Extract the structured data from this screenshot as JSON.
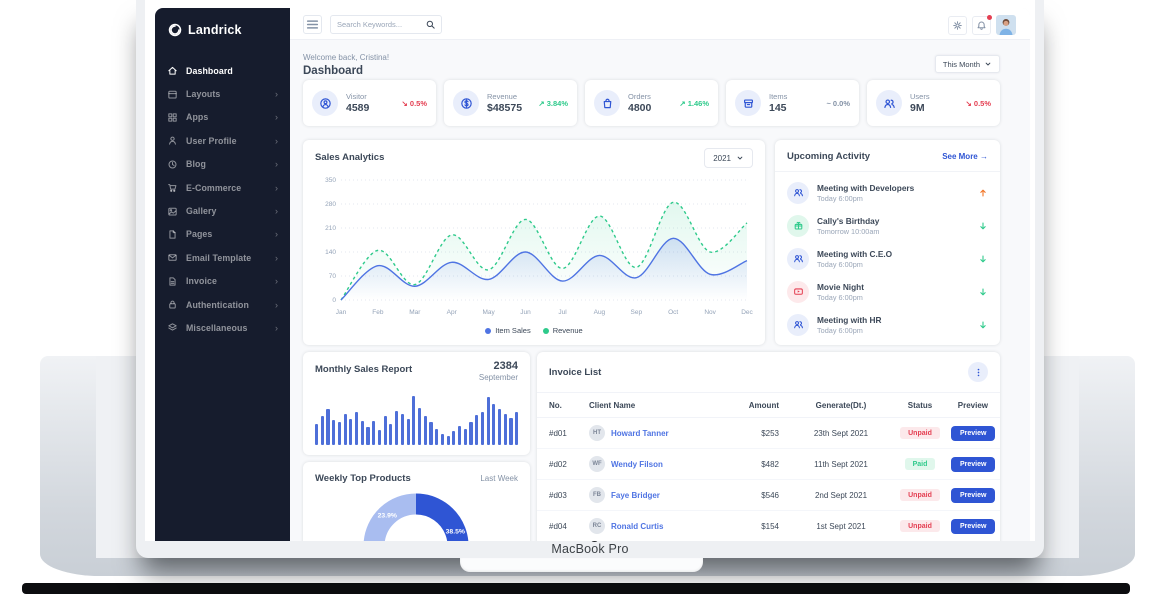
{
  "frame": {
    "device_label": "MacBook Pro"
  },
  "colors": {
    "primary": "#2f55d4",
    "green": "#2eca8b",
    "red": "#e43f52",
    "orange": "#f17425",
    "navy": "#161c2d",
    "muted": "#8492a6",
    "bar_blue": "#4e6fd8"
  },
  "sidebar": {
    "logo": "Landrick",
    "items": [
      {
        "label": "Dashboard",
        "icon": "home-icon",
        "active": true,
        "chevron": false
      },
      {
        "label": "Layouts",
        "icon": "layout-icon",
        "active": false,
        "chevron": true
      },
      {
        "label": "Apps",
        "icon": "apps-icon",
        "active": false,
        "chevron": true
      },
      {
        "label": "User Profile",
        "icon": "user-icon",
        "active": false,
        "chevron": true
      },
      {
        "label": "Blog",
        "icon": "clock-icon",
        "active": false,
        "chevron": true
      },
      {
        "label": "E-Commerce",
        "icon": "cart-icon",
        "active": false,
        "chevron": true
      },
      {
        "label": "Gallery",
        "icon": "gallery-icon",
        "active": false,
        "chevron": true
      },
      {
        "label": "Pages",
        "icon": "pages-icon",
        "active": false,
        "chevron": true
      },
      {
        "label": "Email Template",
        "icon": "email-icon",
        "active": false,
        "chevron": true
      },
      {
        "label": "Invoice",
        "icon": "invoice-icon",
        "active": false,
        "chevron": true
      },
      {
        "label": "Authentication",
        "icon": "lock-icon",
        "active": false,
        "chevron": true
      },
      {
        "label": "Miscellaneous",
        "icon": "layers-icon",
        "active": false,
        "chevron": true
      }
    ]
  },
  "topbar": {
    "search_placeholder": "Search Keywords..."
  },
  "header": {
    "welcome": "Welcome back, Cristina!",
    "title": "Dashboard",
    "period": "This Month"
  },
  "stats": [
    {
      "label": "Visitor",
      "value": "4589",
      "trend": "0.5%",
      "direction": "down",
      "icon": "visitor-icon"
    },
    {
      "label": "Revenue",
      "value": "$48575",
      "trend": "3.84%",
      "direction": "up",
      "icon": "revenue-icon"
    },
    {
      "label": "Orders",
      "value": "4800",
      "trend": "1.46%",
      "direction": "up",
      "icon": "orders-icon"
    },
    {
      "label": "Items",
      "value": "145",
      "trend": "0.0%",
      "direction": "flat",
      "icon": "items-icon"
    },
    {
      "label": "Users",
      "value": "9M",
      "trend": "0.5%",
      "direction": "down",
      "icon": "users-icon"
    }
  ],
  "sales_analytics": {
    "title": "Sales Analytics",
    "year": "2021",
    "legend": [
      "Item Sales",
      "Revenue"
    ]
  },
  "upcoming": {
    "title": "Upcoming Activity",
    "see_more": "See More",
    "items": [
      {
        "title": "Meeting with Developers",
        "time": "Today 6:00pm",
        "icon": "meeting-icon",
        "tint": "blue",
        "arrow": "up"
      },
      {
        "title": "Cally's Birthday",
        "time": "Tomorrow 10:00am",
        "icon": "gift-icon",
        "tint": "green",
        "arrow": "down"
      },
      {
        "title": "Meeting with C.E.O",
        "time": "Today 6:00pm",
        "icon": "meeting-icon",
        "tint": "blue",
        "arrow": "down"
      },
      {
        "title": "Movie Night",
        "time": "Today 6:00pm",
        "icon": "video-icon",
        "tint": "red",
        "arrow": "down"
      },
      {
        "title": "Meeting with HR",
        "time": "Today 6:00pm",
        "icon": "meeting-icon",
        "tint": "blue",
        "arrow": "down"
      }
    ]
  },
  "monthly_sales": {
    "title": "Monthly Sales Report",
    "value": "2384",
    "month": "September"
  },
  "weekly_products": {
    "title": "Weekly Top Products",
    "period": "Last Week"
  },
  "invoices": {
    "title": "Invoice List",
    "columns": [
      "No.",
      "Client Name",
      "Amount",
      "Generate(Dt.)",
      "Status",
      "Preview"
    ],
    "preview_label": "Preview",
    "partial_row_visible": true,
    "rows": [
      {
        "no": "#d01",
        "client": "Howard Tanner",
        "initials": "HT",
        "amount": "$253",
        "date": "23th Sept 2021",
        "status": "Unpaid"
      },
      {
        "no": "#d02",
        "client": "Wendy Filson",
        "initials": "WF",
        "amount": "$482",
        "date": "11th Sept 2021",
        "status": "Paid"
      },
      {
        "no": "#d03",
        "client": "Faye Bridger",
        "initials": "FB",
        "amount": "$546",
        "date": "2nd Sept 2021",
        "status": "Unpaid"
      },
      {
        "no": "#d04",
        "client": "Ronald Curtis",
        "initials": "RC",
        "amount": "$154",
        "date": "1st Sept 2021",
        "status": "Unpaid"
      }
    ]
  },
  "chart_data": [
    {
      "type": "line",
      "title": "Sales Analytics",
      "x": [
        "Jan",
        "Feb",
        "Mar",
        "Apr",
        "May",
        "Jun",
        "Jul",
        "Aug",
        "Sep",
        "Oct",
        "Nov",
        "Dec"
      ],
      "series": [
        {
          "name": "Item Sales",
          "color": "#4f74e3",
          "style": "solid",
          "values": [
            0,
            100,
            40,
            110,
            60,
            140,
            55,
            130,
            65,
            180,
            75,
            115
          ]
        },
        {
          "name": "Revenue",
          "color": "#2eca8b",
          "style": "dashed",
          "values": [
            0,
            145,
            45,
            190,
            88,
            235,
            92,
            245,
            95,
            285,
            140,
            225
          ]
        }
      ],
      "ylim": [
        0,
        350
      ],
      "yticks": [
        0,
        70,
        140,
        210,
        280,
        350
      ],
      "grid": true,
      "legend_position": "bottom"
    },
    {
      "type": "bar",
      "title": "Monthly Sales Report",
      "subtitle_value": "2384",
      "subtitle_label": "September",
      "values": [
        40,
        56,
        70,
        48,
        44,
        60,
        50,
        64,
        46,
        34,
        46,
        28,
        56,
        40,
        66,
        60,
        50,
        95,
        72,
        56,
        44,
        30,
        22,
        18,
        26,
        36,
        30,
        44,
        58,
        64,
        92,
        78,
        70,
        60,
        52,
        64
      ]
    },
    {
      "type": "pie",
      "title": "Weekly Top Products",
      "period": "Last Week",
      "segments": [
        {
          "label": "38.5%",
          "value": 38.5,
          "color": "#2f55d4"
        },
        {
          "label": "",
          "value": 37.6,
          "color": "#7b96e8"
        },
        {
          "label": "23.9%",
          "value": 23.9,
          "color": "#a9bdf0"
        }
      ],
      "note": "donut cut off at card bottom; visible labels 38.5% and 23.9%"
    }
  ]
}
